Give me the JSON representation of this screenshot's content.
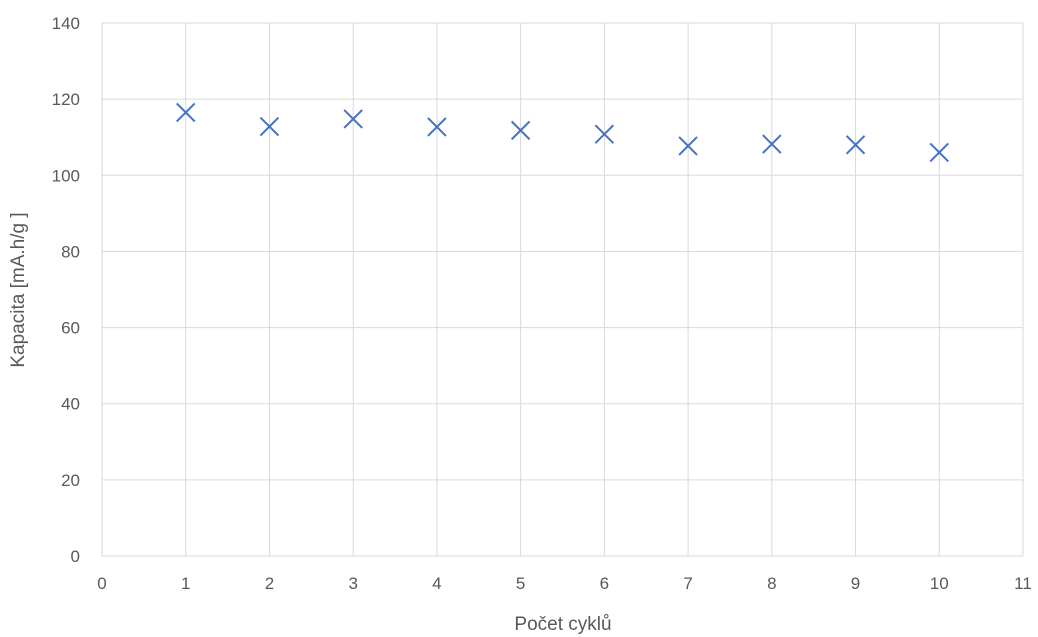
{
  "chart_data": {
    "type": "scatter",
    "title": "",
    "xlabel": "Počet cyklů",
    "ylabel": "Kapacita [mA.h/g ]",
    "xlim": [
      0,
      11
    ],
    "ylim": [
      0,
      140
    ],
    "xticks": [
      0,
      1,
      2,
      3,
      4,
      5,
      6,
      7,
      8,
      9,
      10,
      11
    ],
    "yticks": [
      0,
      20,
      40,
      60,
      80,
      100,
      120,
      140
    ],
    "grid": true,
    "legend": "none",
    "marker": "x",
    "color": "#4472c4",
    "series": [
      {
        "x": [
          1,
          2,
          3,
          4,
          5,
          6,
          7,
          8,
          9,
          10
        ],
        "y": [
          116.5,
          112.8,
          114.8,
          112.7,
          111.8,
          110.8,
          107.7,
          108.2,
          108.0,
          106.0
        ]
      }
    ]
  }
}
